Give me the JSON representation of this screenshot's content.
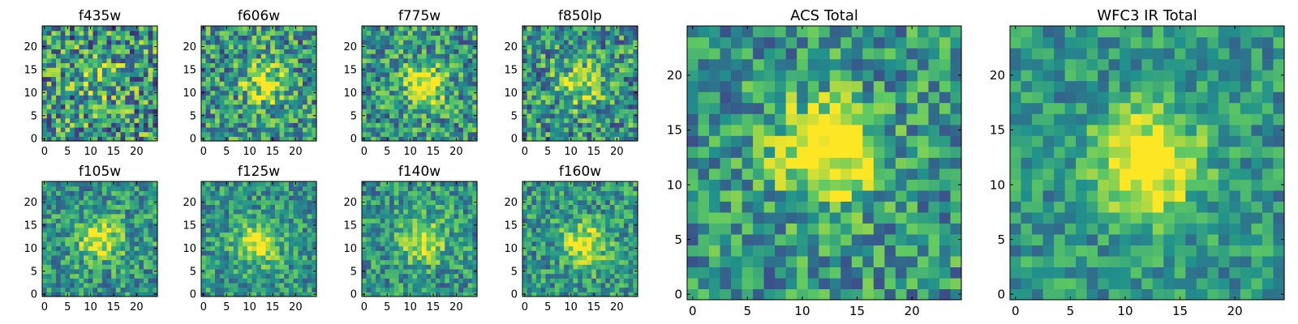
{
  "figure": {
    "background": "#ffffff",
    "colormap": "viridis",
    "colormap_stops": [
      "#440154",
      "#3b528b",
      "#21918c",
      "#5ec962",
      "#fde725"
    ]
  },
  "chart_data": [
    {
      "type": "heatmap",
      "title": "f435w",
      "grid_size": 25,
      "blob_center": [
        12,
        13
      ],
      "blob_strength": 0.25,
      "noise_level": 0.42,
      "xticks": [
        0,
        5,
        10,
        15,
        20
      ],
      "yticks": [
        0,
        5,
        10,
        15,
        20
      ],
      "xlim": [
        0,
        24
      ],
      "ylim": [
        0,
        24
      ]
    },
    {
      "type": "heatmap",
      "title": "f606w",
      "grid_size": 25,
      "blob_center": [
        13,
        12
      ],
      "blob_strength": 0.4,
      "noise_level": 0.36,
      "xticks": [
        0,
        5,
        10,
        15,
        20
      ],
      "yticks": [
        0,
        5,
        10,
        15,
        20
      ],
      "xlim": [
        0,
        24
      ],
      "ylim": [
        0,
        24
      ]
    },
    {
      "type": "heatmap",
      "title": "f775w",
      "grid_size": 25,
      "blob_center": [
        13,
        12
      ],
      "blob_strength": 0.55,
      "noise_level": 0.34,
      "xticks": [
        0,
        5,
        10,
        15,
        20
      ],
      "yticks": [
        0,
        5,
        10,
        15,
        20
      ],
      "xlim": [
        0,
        24
      ],
      "ylim": [
        0,
        24
      ]
    },
    {
      "type": "heatmap",
      "title": "f850lp",
      "grid_size": 25,
      "blob_center": [
        12,
        12
      ],
      "blob_strength": 0.4,
      "noise_level": 0.36,
      "xticks": [
        0,
        5,
        10,
        15,
        20
      ],
      "yticks": [
        0,
        5,
        10,
        15,
        20
      ],
      "xlim": [
        0,
        24
      ],
      "ylim": [
        0,
        24
      ]
    },
    {
      "type": "heatmap",
      "title": "f105w",
      "grid_size": 25,
      "blob_center": [
        12,
        12
      ],
      "blob_strength": 0.5,
      "noise_level": 0.28,
      "xticks": [
        0,
        5,
        10,
        15,
        20
      ],
      "yticks": [
        0,
        5,
        10,
        15,
        20
      ],
      "xlim": [
        0,
        24
      ],
      "ylim": [
        0,
        24
      ]
    },
    {
      "type": "heatmap",
      "title": "f125w",
      "grid_size": 25,
      "blob_center": [
        12,
        11
      ],
      "blob_strength": 0.5,
      "noise_level": 0.26,
      "xticks": [
        0,
        5,
        10,
        15,
        20
      ],
      "yticks": [
        0,
        5,
        10,
        15,
        20
      ],
      "xlim": [
        0,
        24
      ],
      "ylim": [
        0,
        24
      ]
    },
    {
      "type": "heatmap",
      "title": "f140w",
      "grid_size": 25,
      "blob_center": [
        13,
        12
      ],
      "blob_strength": 0.5,
      "noise_level": 0.28,
      "xticks": [
        0,
        5,
        10,
        15,
        20
      ],
      "yticks": [
        0,
        5,
        10,
        15,
        20
      ],
      "xlim": [
        0,
        24
      ],
      "ylim": [
        0,
        24
      ]
    },
    {
      "type": "heatmap",
      "title": "f160w",
      "grid_size": 25,
      "blob_center": [
        13,
        11
      ],
      "blob_strength": 0.5,
      "noise_level": 0.28,
      "xticks": [
        0,
        5,
        10,
        15,
        20
      ],
      "yticks": [
        0,
        5,
        10,
        15,
        20
      ],
      "xlim": [
        0,
        24
      ],
      "ylim": [
        0,
        24
      ]
    },
    {
      "type": "heatmap",
      "title": "ACS Total",
      "grid_size": 25,
      "blob_center": [
        12,
        13
      ],
      "blob_strength": 0.65,
      "noise_level": 0.3,
      "xticks": [
        0,
        5,
        10,
        15,
        20
      ],
      "yticks": [
        0,
        5,
        10,
        15,
        20
      ],
      "xlim": [
        0,
        24
      ],
      "ylim": [
        0,
        24
      ]
    },
    {
      "type": "heatmap",
      "title": "WFC3 IR Total",
      "grid_size": 25,
      "blob_center": [
        12,
        12
      ],
      "blob_strength": 0.7,
      "noise_level": 0.22,
      "xticks": [
        0,
        5,
        10,
        15,
        20
      ],
      "yticks": [
        0,
        5,
        10,
        15,
        20
      ],
      "xlim": [
        0,
        24
      ],
      "ylim": [
        0,
        24
      ]
    }
  ]
}
